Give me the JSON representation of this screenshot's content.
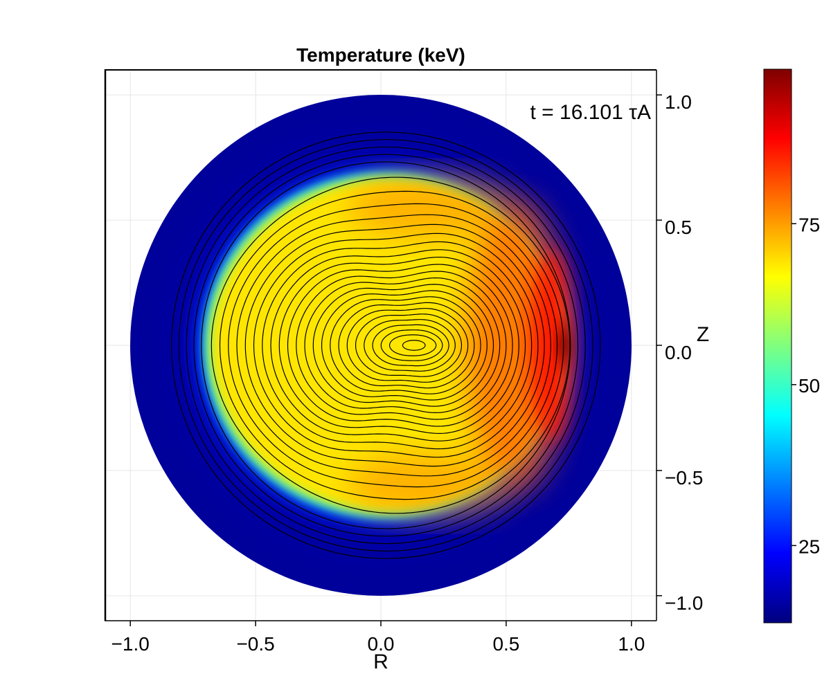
{
  "chart_data": {
    "type": "heatmap",
    "title": "Temperature (keV)",
    "xlabel": "R",
    "ylabel": "Z",
    "annotation": "t = 16.101 τA",
    "xlim": [
      -1.1,
      1.1
    ],
    "ylim": [
      -1.1,
      1.1
    ],
    "x_ticks": [
      -1.0,
      -0.5,
      0.0,
      0.5,
      1.0
    ],
    "x_tick_labels": [
      "−1.0",
      "−0.5",
      "0.0",
      "0.5",
      "1.0"
    ],
    "y_ticks": [
      1.0,
      0.5,
      0.0,
      -0.5,
      -1.0
    ],
    "y_tick_labels": [
      "1.0",
      "0.5",
      "0.0",
      "−0.5",
      "−1.0"
    ],
    "y_axis_side": "right",
    "grid": true,
    "domain": {
      "shape": "circle",
      "center": [
        0.0,
        0.0
      ],
      "radius": 1.0
    },
    "field": {
      "background_value": 14,
      "plateau_value": 70,
      "peak_value": 98,
      "peak_location": [
        0.74,
        0.0
      ],
      "hot_crescent": "low-field side (R > 0)",
      "plasma_boundary_radius": 0.72
    },
    "contours": {
      "color": "#000000",
      "o_point": [
        0.13,
        0.0
      ],
      "nested_flux_surfaces": 22,
      "outer_circles_radii": [
        0.74,
        0.77,
        0.8,
        0.83,
        0.86
      ]
    },
    "colorbar": {
      "colormap": "jet",
      "range": [
        13,
        99
      ],
      "ticks": [
        25,
        50,
        75
      ],
      "tick_labels": [
        "25",
        "50",
        "75"
      ]
    }
  }
}
